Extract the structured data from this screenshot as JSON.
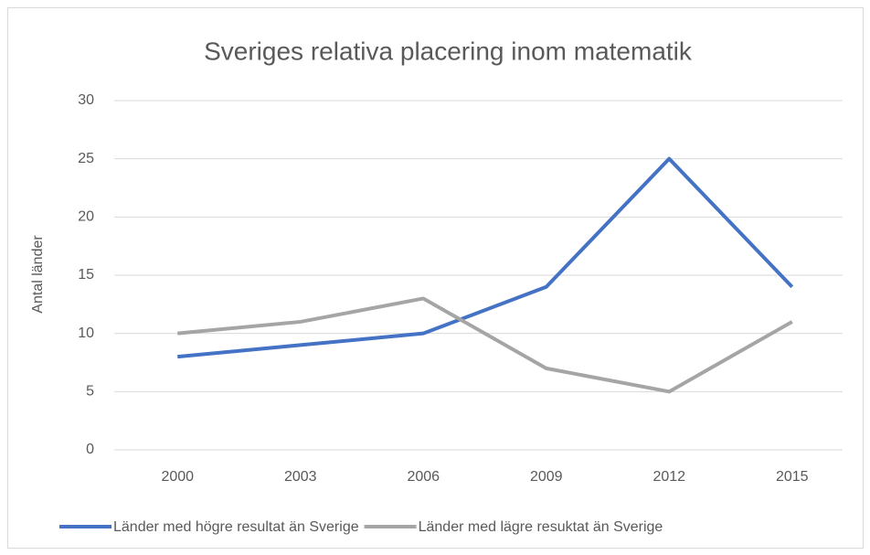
{
  "chart_data": {
    "type": "line",
    "title": "Sveriges relativa placering inom matematik",
    "y_label": "Antal länder",
    "categories": [
      "2000",
      "2003",
      "2006",
      "2009",
      "2012",
      "2015"
    ],
    "series": [
      {
        "name": "Länder med högre resultat än Sverige",
        "color": "#4472c4",
        "values": [
          8,
          9,
          10,
          14,
          25,
          14
        ]
      },
      {
        "name": "Länder med lägre resuktat än Sverige",
        "color": "#a5a5a5",
        "values": [
          10,
          11,
          13,
          7,
          5,
          11
        ]
      }
    ],
    "ylim": [
      0,
      30
    ],
    "yticks": [
      0,
      5,
      10,
      15,
      20,
      25,
      30
    ],
    "grid": true,
    "legend": "bottom"
  }
}
